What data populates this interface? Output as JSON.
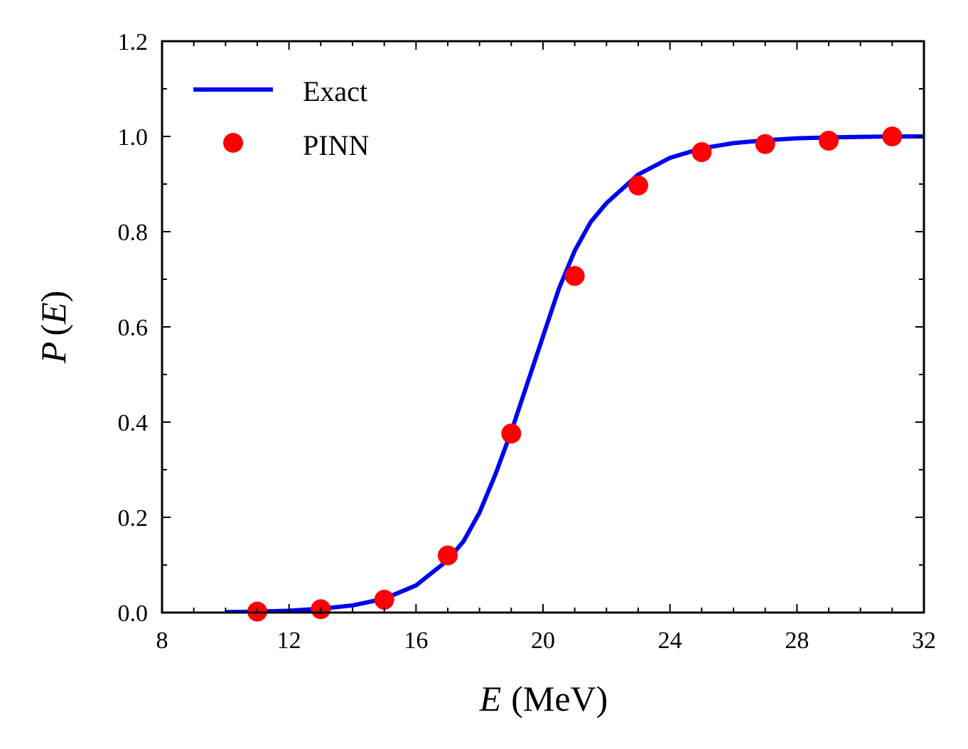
{
  "chart_data": {
    "type": "line",
    "xlabel": {
      "var": "E",
      "unit": "(MeV)"
    },
    "ylabel": {
      "func": "P",
      "open": "(",
      "var": "E",
      "close": ")"
    },
    "xlim": [
      8,
      32
    ],
    "ylim": [
      0.0,
      1.2
    ],
    "xticks": [
      "8",
      "12",
      "16",
      "20",
      "24",
      "28",
      "32"
    ],
    "yticks": [
      "0.0",
      "0.2",
      "0.4",
      "0.6",
      "0.8",
      "1.0",
      "1.2"
    ],
    "legend_position": "top-left",
    "grid": false,
    "series": [
      {
        "name": "Exact",
        "style": "line",
        "color": "#0000ee",
        "x": [
          10,
          11,
          12,
          13,
          14,
          15,
          16,
          17,
          17.5,
          18,
          18.5,
          19,
          19.5,
          20,
          20.5,
          21,
          21.5,
          22,
          23,
          24,
          25,
          26,
          27,
          28,
          29,
          30,
          31,
          32
        ],
        "y": [
          0.001,
          0.002,
          0.004,
          0.008,
          0.015,
          0.029,
          0.057,
          0.11,
          0.15,
          0.21,
          0.29,
          0.38,
          0.48,
          0.58,
          0.68,
          0.76,
          0.82,
          0.86,
          0.92,
          0.955,
          0.975,
          0.986,
          0.992,
          0.996,
          0.998,
          0.999,
          1.0,
          1.0
        ]
      },
      {
        "name": "PINN",
        "style": "scatter",
        "color": "#ff0000",
        "x": [
          11,
          13,
          15,
          17,
          19,
          21,
          23,
          25,
          27,
          29,
          31
        ],
        "y": [
          0.002,
          0.007,
          0.027,
          0.12,
          0.376,
          0.707,
          0.897,
          0.967,
          0.984,
          0.991,
          1.0
        ]
      }
    ]
  }
}
